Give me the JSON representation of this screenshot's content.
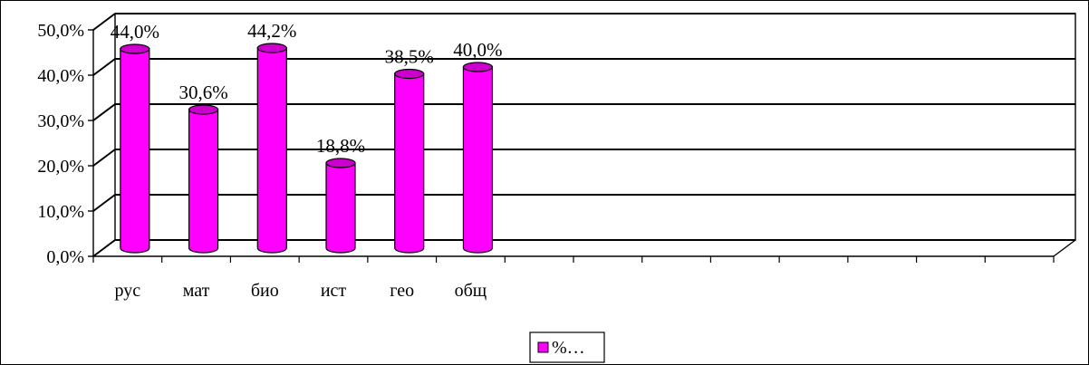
{
  "chart_data": {
    "type": "bar",
    "categories": [
      "рус",
      "мат",
      "био",
      "ист",
      "гео",
      "общ"
    ],
    "series": [
      {
        "name": "%…",
        "values": [
          44.0,
          30.6,
          44.2,
          18.8,
          38.5,
          40.0
        ]
      }
    ],
    "data_labels": [
      "44,0%",
      "30,6%",
      "44,2%",
      "18,8%",
      "38,5%",
      "40,0%"
    ],
    "y_tick_labels": [
      "0,0%",
      "10,0%",
      "20,0%",
      "30,0%",
      "40,0%",
      "50,0%"
    ],
    "ylim": [
      0,
      50
    ],
    "y_ticks": [
      0,
      10,
      20,
      30,
      40,
      50
    ],
    "grid": true,
    "style": "3d-cylinder",
    "legend": {
      "position": "bottom",
      "label": "%…"
    },
    "title": "",
    "xlabel": "",
    "ylabel": "",
    "colors": {
      "bar": "#ff00ff",
      "bar_dark": "#cc00cc",
      "grid": "#000000"
    }
  }
}
